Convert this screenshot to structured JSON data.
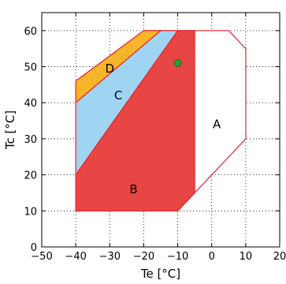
{
  "chart_data": {
    "type": "area",
    "title": "",
    "xlabel": "Te [°C]",
    "ylabel": "Tc [°C]",
    "xlim": [
      -50,
      20
    ],
    "ylim": [
      0,
      65
    ],
    "xticks": [
      -50,
      -40,
      -30,
      -20,
      -10,
      0,
      10,
      20
    ],
    "yticks": [
      0,
      10,
      20,
      30,
      40,
      50,
      60
    ],
    "xtick_labels": [
      "−50",
      "−40",
      "−30",
      "−20",
      "−10",
      "0",
      "10",
      "20"
    ],
    "ytick_labels": [
      "0",
      "10",
      "20",
      "30",
      "40",
      "50",
      "60"
    ],
    "grid": true,
    "regions": [
      {
        "label": "A",
        "color": "#ffffff",
        "edge": "#e8232a",
        "polygon": [
          [
            -40,
            10
          ],
          [
            -40,
            46
          ],
          [
            -20,
            60
          ],
          [
            5,
            60
          ],
          [
            10,
            55
          ],
          [
            10,
            30
          ],
          [
            -10,
            10
          ]
        ],
        "label_pos": [
          1.5,
          34
        ]
      },
      {
        "label": "D",
        "color": "#f7b52c",
        "edge": "#e8232a",
        "polygon": [
          [
            -40,
            40
          ],
          [
            -40,
            46
          ],
          [
            -20,
            60
          ],
          [
            -15,
            60
          ]
        ],
        "label_pos": [
          -30,
          49.5
        ]
      },
      {
        "label": "C",
        "color": "#9fd4f2",
        "edge": "#e8232a",
        "polygon": [
          [
            -40,
            20
          ],
          [
            -40,
            40
          ],
          [
            -15,
            60
          ],
          [
            -10,
            60
          ]
        ],
        "label_pos": [
          -27.5,
          42
        ]
      },
      {
        "label": "B",
        "color": "#e84545",
        "edge": "#e8232a",
        "polygon": [
          [
            -40,
            10
          ],
          [
            -40,
            20
          ],
          [
            -10,
            60
          ],
          [
            -5,
            60
          ],
          [
            -5,
            15
          ],
          [
            -10,
            10
          ]
        ],
        "label_pos": [
          -23,
          16
        ]
      }
    ],
    "points": [
      {
        "x": -10,
        "y": 51,
        "color": "#2ca02c"
      }
    ]
  }
}
